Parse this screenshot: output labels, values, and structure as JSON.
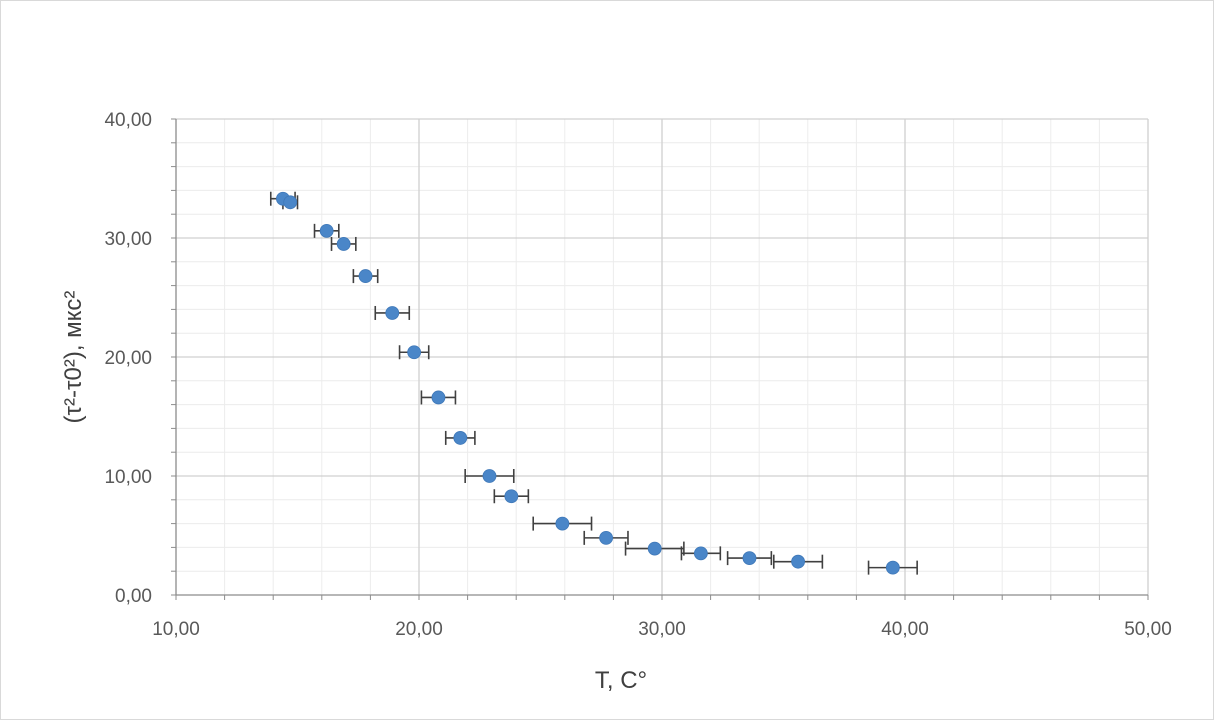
{
  "chart_data": {
    "type": "scatter",
    "title": "",
    "xlabel": "T, C°",
    "ylabel": "(τ²-τ0²), мкс²",
    "xlim": [
      10,
      50
    ],
    "ylim": [
      0,
      40
    ],
    "x_ticks": [
      10,
      20,
      30,
      40,
      50
    ],
    "y_ticks": [
      0,
      10,
      20,
      30,
      40
    ],
    "x_tick_labels": [
      "10,00",
      "20,00",
      "30,00",
      "40,00",
      "50,00"
    ],
    "y_tick_labels": [
      "0,00",
      "10,00",
      "20,00",
      "30,00",
      "40,00"
    ],
    "grid": true,
    "legend": "none",
    "marker_color": "#4a86c8",
    "error_bar_color": "#404040",
    "series": [
      {
        "x": [
          14.4,
          14.7,
          16.2,
          16.9,
          17.8,
          18.9,
          19.8,
          20.8,
          21.7,
          22.9,
          23.8,
          25.9,
          27.7,
          29.7,
          31.6,
          33.6,
          35.6,
          39.5
        ],
        "y": [
          33.3,
          33.0,
          30.6,
          29.5,
          26.8,
          23.7,
          20.4,
          16.6,
          13.2,
          10.0,
          8.3,
          6.0,
          4.8,
          3.9,
          3.5,
          3.1,
          2.8,
          2.3
        ],
        "x_error": [
          0.5,
          0.3,
          0.5,
          0.5,
          0.5,
          0.7,
          0.6,
          0.7,
          0.6,
          1.0,
          0.7,
          1.2,
          0.9,
          1.2,
          0.8,
          0.9,
          1.0,
          1.0
        ]
      }
    ]
  }
}
